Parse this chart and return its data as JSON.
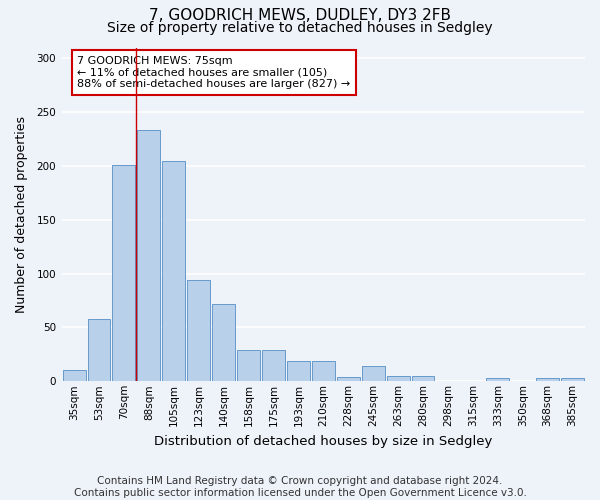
{
  "title1": "7, GOODRICH MEWS, DUDLEY, DY3 2FB",
  "title2": "Size of property relative to detached houses in Sedgley",
  "xlabel": "Distribution of detached houses by size in Sedgley",
  "ylabel": "Number of detached properties",
  "bar_labels": [
    "35sqm",
    "53sqm",
    "70sqm",
    "88sqm",
    "105sqm",
    "123sqm",
    "140sqm",
    "158sqm",
    "175sqm",
    "193sqm",
    "210sqm",
    "228sqm",
    "245sqm",
    "263sqm",
    "280sqm",
    "298sqm",
    "315sqm",
    "333sqm",
    "350sqm",
    "368sqm",
    "385sqm"
  ],
  "bar_values": [
    10,
    58,
    201,
    233,
    205,
    94,
    72,
    29,
    29,
    19,
    19,
    4,
    14,
    5,
    5,
    0,
    0,
    3,
    0,
    3,
    3
  ],
  "bar_color": "#b8d0ea",
  "bar_edge_color": "#6699cc",
  "background_color": "#eef2f9",
  "grid_color": "#ffffff",
  "annotation_text": "7 GOODRICH MEWS: 75sqm\n← 11% of detached houses are smaller (105)\n88% of semi-detached houses are larger (827) →",
  "annotation_box_color": "#ffffff",
  "annotation_box_edge": "#cc0000",
  "vline_x": 2.5,
  "vline_color": "#cc0000",
  "ylim": [
    0,
    310
  ],
  "yticks": [
    0,
    50,
    100,
    150,
    200,
    250,
    300
  ],
  "footer": "Contains HM Land Registry data © Crown copyright and database right 2024.\nContains public sector information licensed under the Open Government Licence v3.0.",
  "title_fontsize": 11,
  "subtitle_fontsize": 10,
  "xlabel_fontsize": 9.5,
  "ylabel_fontsize": 9,
  "tick_fontsize": 7.5,
  "footer_fontsize": 7.5,
  "annot_fontsize": 8
}
